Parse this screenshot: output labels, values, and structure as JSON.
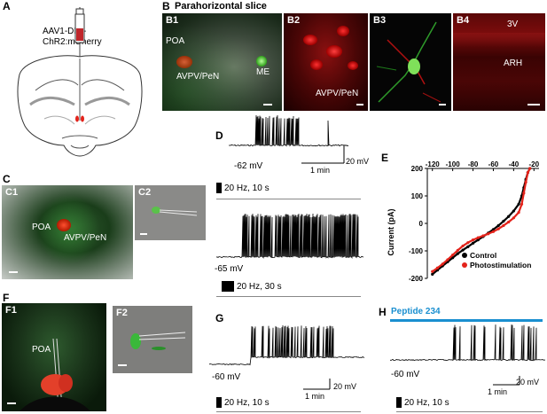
{
  "panel_labels": {
    "a": "A",
    "b": "B",
    "c": "C",
    "d": "D",
    "e": "E",
    "f": "F",
    "g": "G",
    "h": "H"
  },
  "a": {
    "injection": "AAV1-DIO-ChR2:mCherry"
  },
  "b": {
    "title": "Parahorizontal slice",
    "b1": {
      "label": "B1",
      "poa": "POA",
      "avpv": "AVPV/PeN",
      "me": "ME"
    },
    "b2": {
      "label": "B2",
      "avpv": "AVPV/PeN"
    },
    "b3": {
      "label": "B3"
    },
    "b4": {
      "label": "B4",
      "v3": "3V",
      "arh": "ARH"
    }
  },
  "c": {
    "c1": {
      "label": "C1",
      "poa": "POA",
      "avpv": "AVPV/PeN"
    },
    "c2": {
      "label": "C2"
    }
  },
  "d": {
    "vm1": "-62 mV",
    "scale_v": "20 mV",
    "scale_t": "1 min",
    "stim1": "20 Hz, 10 s",
    "vm2": "-65 mV",
    "stim2": "20 Hz, 30 s"
  },
  "e": {
    "xlabel": "Voltage (mV)",
    "ylabel": "Current (pA)",
    "legend": [
      "Control",
      "Photostimulation"
    ],
    "colors": {
      "control": "#000000",
      "photostim": "#e3231b"
    }
  },
  "f": {
    "f1": {
      "label": "F1",
      "poa": "POA"
    },
    "f2": {
      "label": "F2"
    }
  },
  "g": {
    "vm": "-60 mV",
    "scale_v": "20 mV",
    "scale_t": "1 min",
    "stim": "20 Hz, 10 s"
  },
  "h": {
    "peptide": "Peptide 234",
    "peptide_color": "#1a8fd0",
    "vm": "-60 mV",
    "scale_v": "20 mV",
    "scale_t": "1 min",
    "stim": "20 Hz, 10 s"
  },
  "chart_data": {
    "type": "line",
    "title": "",
    "xlabel": "Voltage (mV)",
    "ylabel": "Current (pA)",
    "xlim": [
      -125,
      -15
    ],
    "ylim": [
      -200,
      200
    ],
    "xticks": [
      -120,
      -100,
      -80,
      -60,
      -40,
      -20
    ],
    "yticks": [
      200,
      100,
      0,
      -100,
      -200
    ],
    "legend_position": "bottom-right",
    "series": [
      {
        "name": "Control",
        "color": "#000000",
        "x": [
          -120,
          -115,
          -110,
          -105,
          -100,
          -95,
          -90,
          -85,
          -80,
          -75,
          -70,
          -65,
          -60,
          -55,
          -50,
          -45,
          -40,
          -35,
          -32,
          -30,
          -28,
          -26,
          -24
        ],
        "y": [
          -185,
          -170,
          -155,
          -140,
          -125,
          -110,
          -97,
          -85,
          -72,
          -60,
          -48,
          -35,
          -22,
          -8,
          8,
          25,
          45,
          70,
          100,
          130,
          160,
          185,
          200
        ]
      },
      {
        "name": "Photostimulation",
        "color": "#e3231b",
        "x": [
          -120,
          -115,
          -110,
          -105,
          -100,
          -95,
          -90,
          -85,
          -80,
          -75,
          -70,
          -65,
          -60,
          -55,
          -50,
          -45,
          -40,
          -35,
          -32,
          -30,
          -28,
          -26,
          -24
        ],
        "y": [
          -175,
          -162,
          -148,
          -132,
          -115,
          -98,
          -82,
          -70,
          -60,
          -52,
          -45,
          -38,
          -30,
          -20,
          -8,
          5,
          20,
          40,
          70,
          110,
          150,
          185,
          200
        ]
      }
    ]
  }
}
